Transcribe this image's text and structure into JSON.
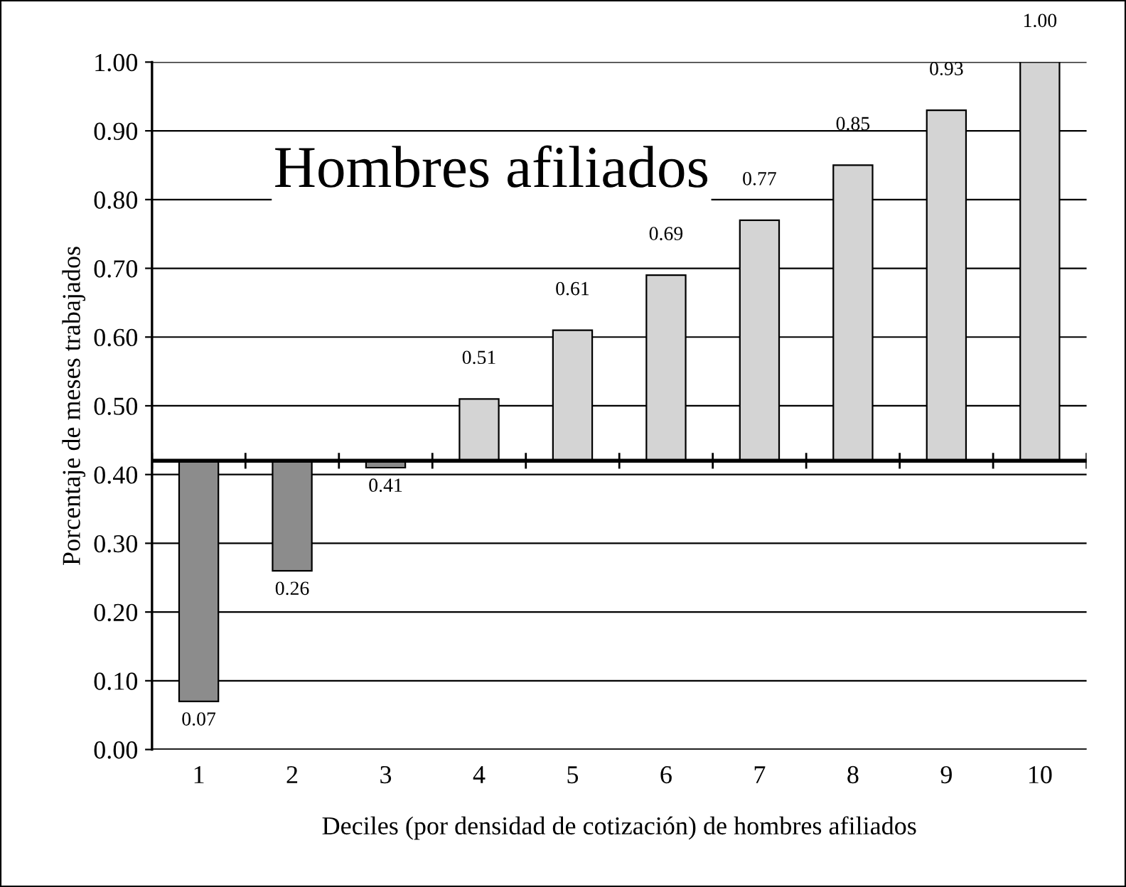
{
  "chart_data": {
    "type": "bar",
    "title": "Hombres afiliados",
    "xlabel": "Deciles (por densidad de cotización) de hombres afiliados",
    "ylabel": "Porcentaje de meses trabajados",
    "categories": [
      "1",
      "2",
      "3",
      "4",
      "5",
      "6",
      "7",
      "8",
      "9",
      "10"
    ],
    "base": [
      0.42,
      0.42,
      0.42,
      0.42,
      0.42,
      0.42,
      0.42,
      0.42,
      0.42,
      0.42
    ],
    "values": [
      -0.35,
      -0.16,
      -0.01,
      0.09,
      0.19,
      0.27,
      0.35,
      0.43,
      0.51,
      0.58
    ],
    "colors": [
      "#8c8c8c",
      "#8c8c8c",
      "#8c8c8c",
      "#d4d4d4",
      "#d4d4d4",
      "#d4d4d4",
      "#d4d4d4",
      "#d4d4d4",
      "#d4d4d4",
      "#d4d4d4"
    ],
    "value_labels": [
      "0.07",
      "0.26",
      "0.41",
      "0.51",
      "0.61",
      "0.69",
      "0.77",
      "0.85",
      "0.93",
      "1.00"
    ],
    "ylim": [
      0,
      1
    ],
    "yticks": [
      {
        "value": 0,
        "label": "0.00"
      },
      {
        "value": 0.1,
        "label": "0.10"
      },
      {
        "value": 0.2,
        "label": "0.20"
      },
      {
        "value": 0.3,
        "label": "0.30"
      },
      {
        "value": 0.4,
        "label": "0.40"
      },
      {
        "value": 0.5,
        "label": "0.50"
      },
      {
        "value": 0.6,
        "label": "0.60"
      },
      {
        "value": 0.7,
        "label": "0.70"
      },
      {
        "value": 0.8,
        "label": "0.80"
      },
      {
        "value": 0.9,
        "label": "0.90"
      },
      {
        "value": 1,
        "label": "1.00"
      }
    ],
    "ref_lines": [
      {
        "axis": "y",
        "value": 0.42,
        "color": "#000000"
      }
    ],
    "grid": "y"
  }
}
